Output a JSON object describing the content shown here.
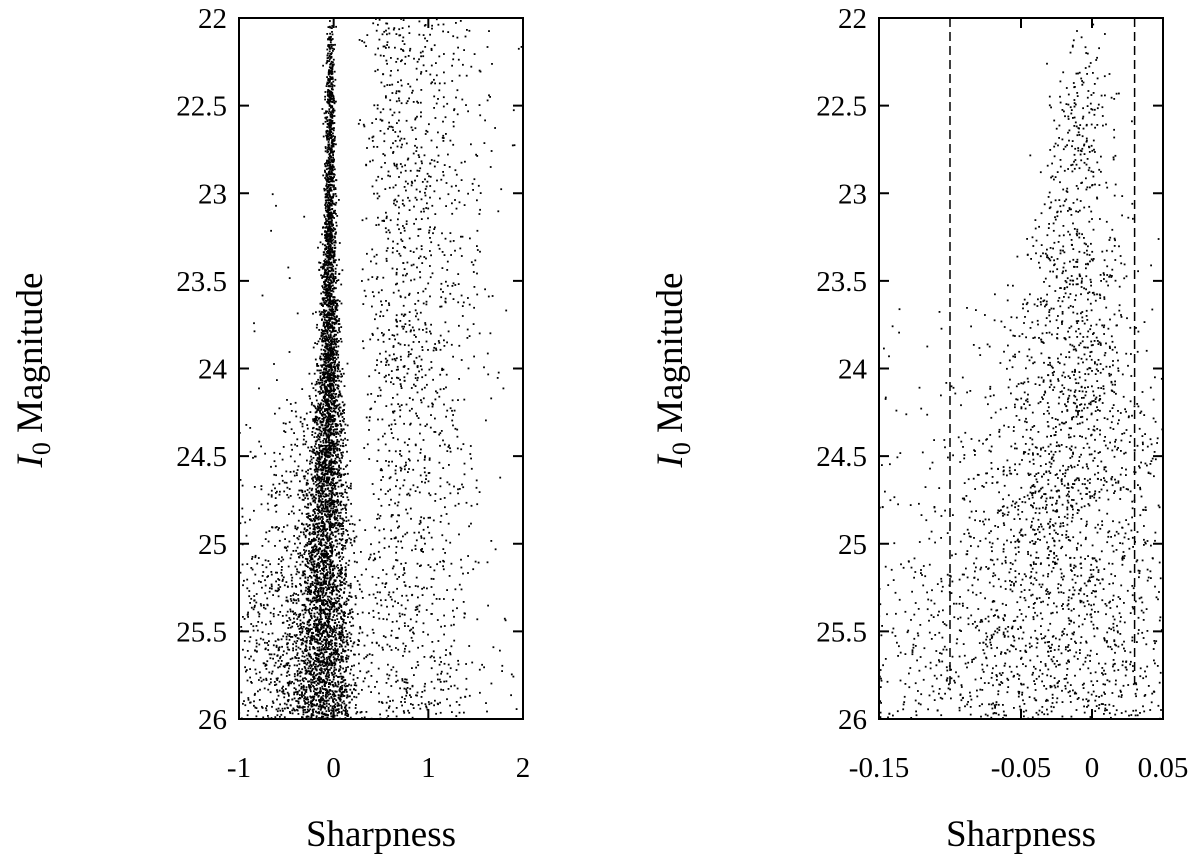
{
  "figure": {
    "panels": [
      {
        "xlabel": "Sharpness",
        "ylabel_main": "I",
        "ylabel_sub": "0",
        "ylabel_rest": " Magnitude"
      },
      {
        "xlabel": "Sharpness",
        "ylabel_main": "I",
        "ylabel_sub": "0",
        "ylabel_rest": " Magnitude"
      }
    ]
  },
  "chart_data": [
    {
      "type": "scatter",
      "title": "",
      "xlabel": "Sharpness",
      "ylabel": "I0 Magnitude",
      "xlim": [
        -1,
        2
      ],
      "ylim": [
        22,
        26
      ],
      "y_inverted": true,
      "xticks": [
        "-1",
        "0",
        "1",
        "2"
      ],
      "yticks": [
        "22",
        "22.5",
        "23",
        "23.5",
        "24",
        "24.5",
        "25",
        "25.5",
        "26"
      ],
      "point_color": "#000000",
      "grid": false,
      "legend": "none",
      "description_of_points": "Dense narrow stellar sequence near sharpness 0, broadening toward faint magnitudes; sparse scatter of sources at positive sharpness (0.3 to 2) at all magnitudes and at negative sharpness mostly fainter than 24.5.",
      "sequence_profile": [
        {
          "mag": 22.0,
          "center": -0.03,
          "width": 0.02
        },
        {
          "mag": 23.0,
          "center": -0.04,
          "width": 0.03
        },
        {
          "mag": 24.0,
          "center": -0.05,
          "width": 0.06
        },
        {
          "mag": 25.0,
          "center": -0.08,
          "width": 0.12
        },
        {
          "mag": 26.0,
          "center": -0.1,
          "width": 0.2
        }
      ]
    },
    {
      "type": "scatter",
      "title": "",
      "xlabel": "Sharpness",
      "ylabel": "I0 Magnitude",
      "xlim": [
        -0.15,
        0.05
      ],
      "ylim": [
        22,
        26
      ],
      "y_inverted": true,
      "xticks": [
        "-0.15",
        "-0.05",
        "0",
        "0.05"
      ],
      "yticks": [
        "22",
        "22.5",
        "23",
        "23.5",
        "24",
        "24.5",
        "25",
        "25.5",
        "26"
      ],
      "point_color": "#000000",
      "grid": false,
      "legend": "none",
      "cut_lines": [
        -0.1,
        0.03
      ],
      "cut_line_style": "dashed",
      "description_of_points": "Zoom on the stellar sequence: points concentrated near sharpness -0.01 at bright magnitudes, spreading across the full range at faint magnitudes; dashed vertical selection limits at -0.1 and 0.03.",
      "sequence_profile": [
        {
          "mag": 22.0,
          "center": -0.005,
          "width": 0.008
        },
        {
          "mag": 23.0,
          "center": -0.01,
          "width": 0.015
        },
        {
          "mag": 24.0,
          "center": -0.015,
          "width": 0.025
        },
        {
          "mag": 25.0,
          "center": -0.025,
          "width": 0.04
        },
        {
          "mag": 26.0,
          "center": -0.035,
          "width": 0.06
        }
      ]
    }
  ]
}
